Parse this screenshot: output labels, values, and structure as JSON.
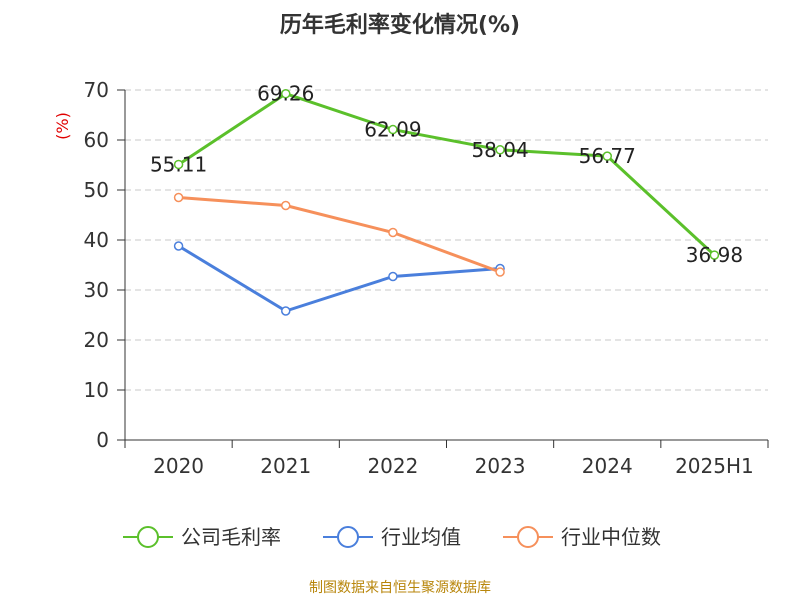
{
  "chart_data": {
    "type": "line",
    "title": "历年毛利率变化情况(%)",
    "ylabel": "(%)",
    "xlabel": "",
    "categories": [
      "2020",
      "2021",
      "2022",
      "2023",
      "2024",
      "2025H1"
    ],
    "ylim": [
      0,
      70
    ],
    "yticks": [
      0,
      10,
      20,
      30,
      40,
      50,
      60,
      70
    ],
    "grid": true,
    "legend_position": "bottom",
    "series": [
      {
        "name": "公司毛利率",
        "color": "#5bc02b",
        "values": [
          55.11,
          69.26,
          62.09,
          58.04,
          56.77,
          36.98
        ],
        "labels": [
          "55.11",
          "69.26",
          "62.09",
          "58.04",
          "56.77",
          "36.98"
        ]
      },
      {
        "name": "行业均值",
        "color": "#4a7fdc",
        "values": [
          38.8,
          25.8,
          32.7,
          34.3,
          null,
          null
        ]
      },
      {
        "name": "行业中位数",
        "color": "#f6905b",
        "values": [
          48.5,
          46.9,
          41.5,
          33.6,
          null,
          null
        ]
      }
    ]
  },
  "source": "制图数据来自恒生聚源数据库"
}
